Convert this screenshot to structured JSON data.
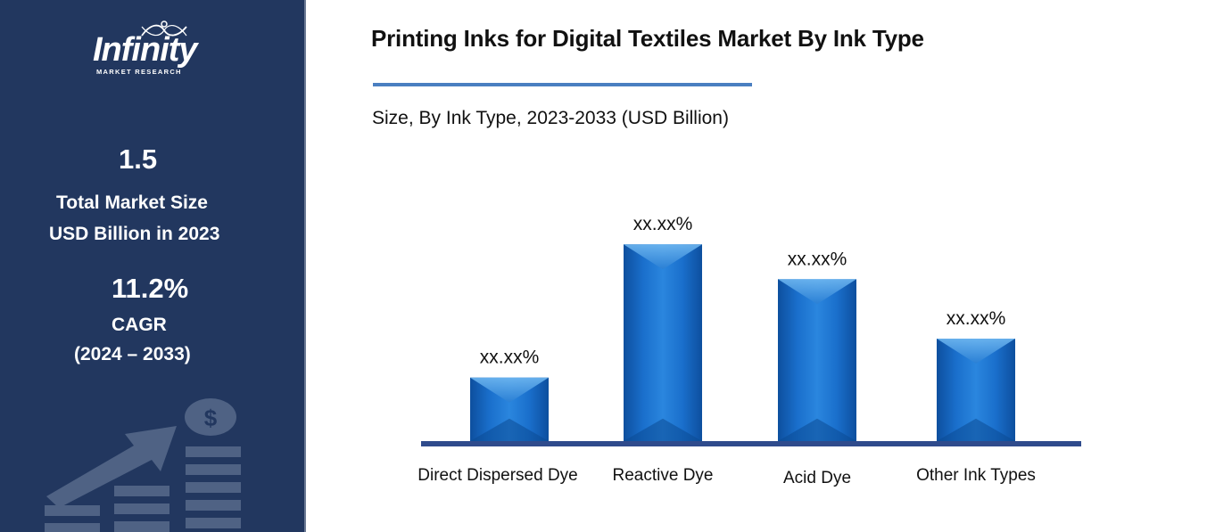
{
  "brand": {
    "name": "Infinity",
    "tagline": "MARKET RESEARCH"
  },
  "sidebar": {
    "market_size_value": "1.5",
    "market_size_label_1": "Total Market Size",
    "market_size_label_2": "USD Billion in 2023",
    "cagr_value": "11.2%",
    "cagr_label": "CAGR",
    "cagr_period": "(2024 – 2033)",
    "decor_icon": "dollar-growth-icon"
  },
  "colors": {
    "sidebar_bg": "#22375f",
    "bar_main": "#1565c0",
    "bar_light": "#5aa8ec",
    "baseline": "#2f4b8c",
    "title_rule": "#4a7fc1"
  },
  "chart_data": {
    "type": "bar",
    "title": "Printing Inks for Digital Textiles Market By Ink Type",
    "subtitle": "Size, By Ink Type, 2023-2033 (USD Billion)",
    "categories": [
      "Direct Dispersed Dye",
      "Reactive Dye",
      "Acid Dye",
      "Other Ink Types"
    ],
    "values": [
      3.1,
      9.6,
      7.9,
      5.0
    ],
    "data_labels": [
      "xx.xx%",
      "xx.xx%",
      "xx.xx%",
      "xx.xx%"
    ],
    "xlabel": "",
    "ylabel": "",
    "ylim": [
      0,
      10
    ],
    "grid": false,
    "legend": "none",
    "axis_values_shown": false
  }
}
